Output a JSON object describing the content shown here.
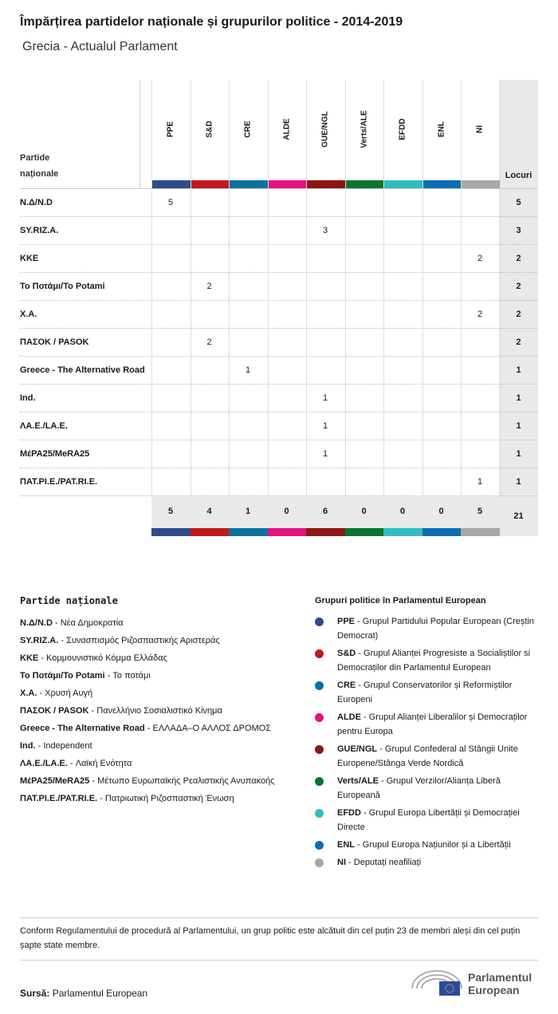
{
  "title": "Împărțirea partidelor naționale și grupurilor politice - 2014-2019",
  "subtitle": "Grecia - Actualul Parlament",
  "table": {
    "party_header": "Partide naționale",
    "seats_header": "Locuri",
    "groups": [
      {
        "label": "PPE",
        "color": "#2e4b8e"
      },
      {
        "label": "S&D",
        "color": "#c0191c"
      },
      {
        "label": "CRE",
        "color": "#0a71a0"
      },
      {
        "label": "ALDE",
        "color": "#e4117f"
      },
      {
        "label": "GUE/NGL",
        "color": "#8b1614"
      },
      {
        "label": "Verts/ALE",
        "color": "#0b7434"
      },
      {
        "label": "EFDD",
        "color": "#31bcc3"
      },
      {
        "label": "ENL",
        "color": "#0c6db5"
      },
      {
        "label": "NI",
        "color": "#a8a8a8"
      }
    ],
    "rows": [
      {
        "party": "N.Δ/N.D",
        "values": [
          "5",
          "",
          "",
          "",
          "",
          "",
          "",
          "",
          ""
        ],
        "total": "5"
      },
      {
        "party": "SY.RIZ.A.",
        "values": [
          "",
          "",
          "",
          "",
          "3",
          "",
          "",
          "",
          ""
        ],
        "total": "3"
      },
      {
        "party": "KKE",
        "values": [
          "",
          "",
          "",
          "",
          "",
          "",
          "",
          "",
          "2"
        ],
        "total": "2"
      },
      {
        "party": "Το Ποτάμι/To Potami",
        "values": [
          "",
          "2",
          "",
          "",
          "",
          "",
          "",
          "",
          ""
        ],
        "total": "2"
      },
      {
        "party": "X.A.",
        "values": [
          "",
          "",
          "",
          "",
          "",
          "",
          "",
          "",
          "2"
        ],
        "total": "2"
      },
      {
        "party": "ΠΑΣΟΚ / PASOK",
        "values": [
          "",
          "2",
          "",
          "",
          "",
          "",
          "",
          "",
          ""
        ],
        "total": "2"
      },
      {
        "party": "Greece - The Alternative Road",
        "values": [
          "",
          "",
          "1",
          "",
          "",
          "",
          "",
          "",
          ""
        ],
        "total": "1"
      },
      {
        "party": "Ind.",
        "values": [
          "",
          "",
          "",
          "",
          "1",
          "",
          "",
          "",
          ""
        ],
        "total": "1"
      },
      {
        "party": "ΛΑ.Ε./LA.E.",
        "values": [
          "",
          "",
          "",
          "",
          "1",
          "",
          "",
          "",
          ""
        ],
        "total": "1"
      },
      {
        "party": "ΜέΡΑ25/MeRA25",
        "values": [
          "",
          "",
          "",
          "",
          "1",
          "",
          "",
          "",
          ""
        ],
        "total": "1"
      },
      {
        "party": "ΠΑΤ.ΡΙ.Ε./PAT.RI.E.",
        "values": [
          "",
          "",
          "",
          "",
          "",
          "",
          "",
          "",
          "1"
        ],
        "total": "1"
      }
    ],
    "totals": [
      "5",
      "4",
      "1",
      "0",
      "6",
      "0",
      "0",
      "0",
      "5"
    ],
    "grand_total": "21"
  },
  "legend_parties": {
    "heading": "Partide naționale",
    "items": [
      {
        "abbr": "N.Δ/N.D",
        "name": "Νέα Δημοκρατία"
      },
      {
        "abbr": "SY.RIZ.A.",
        "name": "Συνασπισμός Ριζοσπαστικής Αριστεράς"
      },
      {
        "abbr": "KKE",
        "name": "Κομμουνιστικό Κόμμα Ελλάδας"
      },
      {
        "abbr": "Το Ποτάμι/To Potami",
        "name": "Το ποτάμι"
      },
      {
        "abbr": "X.A.",
        "name": "Χρυσή Αυγή"
      },
      {
        "abbr": "ΠΑΣΟΚ / PASOK",
        "name": "Πανελλήνιο Σοσιαλιστικό Κίνημα"
      },
      {
        "abbr": "Greece - The Alternative Road",
        "name": "ΕΛΛΑΔΑ–Ο ΑΛΛΟΣ ΔΡΟΜΟΣ"
      },
      {
        "abbr": "Ind.",
        "name": "Independent"
      },
      {
        "abbr": "ΛΑ.Ε./LA.E.",
        "name": "Λαϊκή Ενότητα"
      },
      {
        "abbr": "ΜέΡΑ25/MeRA25",
        "name": "Μέτωπο Ευρωπαϊκής Ρεαλιστικής Ανυπακοής"
      },
      {
        "abbr": "ΠΑΤ.ΡΙ.Ε./PAT.RI.E.",
        "name": "Πατριωτική Ριζοσπαστική Ένωση"
      }
    ]
  },
  "legend_groups": {
    "heading": "Grupuri politice în Parlamentul European",
    "items": [
      {
        "abbr": "PPE",
        "name": "Grupul Partidului Popular European (Creștin Democrat)",
        "color": "#2e4b8e"
      },
      {
        "abbr": "S&D",
        "name": "Grupul Alianței Progresiste a Socialiștilor si Democraților din Parlamentul European",
        "color": "#c0191c"
      },
      {
        "abbr": "CRE",
        "name": "Grupul Conservatorilor și Reformiștilor Europeni",
        "color": "#0a71a0"
      },
      {
        "abbr": "ALDE",
        "name": "Grupul Alianței Liberalilor și Democraților pentru Europa",
        "color": "#e4117f"
      },
      {
        "abbr": "GUE/NGL",
        "name": "Grupul Confederal al Stângii Unite Europene/Stânga Verde Nordică",
        "color": "#8b1614"
      },
      {
        "abbr": "Verts/ALE",
        "name": "Grupul Verzilor/Alianța Liberă Europeană",
        "color": "#0b7434"
      },
      {
        "abbr": "EFDD",
        "name": "Grupul Europa Libertății și Democrației Directe",
        "color": "#31bcc3"
      },
      {
        "abbr": "ENL",
        "name": "Grupul Europa Națiunilor și a Libertății",
        "color": "#0c6db5"
      },
      {
        "abbr": "NI",
        "name": "Deputați neafiliați",
        "color": "#a8a8a8"
      }
    ]
  },
  "note": "Conform Regulamentului de procedură al Parlamentului, un grup politic este alcătuit din cel puțin 23 de membri aleși din cel puțin șapte state membre.",
  "source": {
    "label": "Sursă:",
    "value": "Parlamentul European"
  },
  "logo": {
    "line1": "Parlamentul",
    "line2": "European"
  }
}
